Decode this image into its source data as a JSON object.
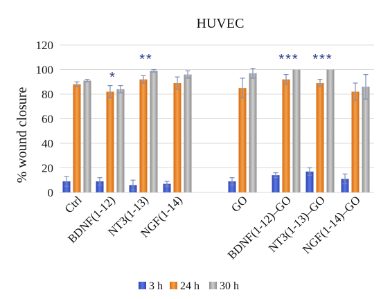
{
  "chart_data": {
    "type": "bar",
    "title": "HUVEC",
    "ylabel": "% wound closure",
    "ylim": [
      0,
      120
    ],
    "yticks": [
      0,
      20,
      40,
      60,
      80,
      100,
      120
    ],
    "grid": true,
    "legend_position": "bottom",
    "categories": [
      "Ctrl",
      "BDNF(1-12)",
      "NT3(1-13)",
      "NGF(1-14)",
      "GO",
      "BDNF(1-12)–GO",
      "NT3(1-13)–GO",
      "NGF(1-14)–GO"
    ],
    "series": [
      {
        "name": "3 h",
        "color": "#3a56c8",
        "values": [
          9,
          9,
          6,
          7,
          9,
          14,
          17,
          11
        ],
        "errors": [
          4,
          3,
          4,
          2,
          3,
          2,
          3,
          4
        ]
      },
      {
        "name": "24 h",
        "color": "#e8821e",
        "values": [
          88,
          82,
          92,
          89,
          85,
          92,
          89,
          82
        ],
        "errors": [
          2,
          5,
          3,
          5,
          8,
          4,
          3,
          7
        ]
      },
      {
        "name": "30 h",
        "color": "#a3a3a3",
        "values": [
          91,
          84,
          99,
          96,
          97,
          100,
          100,
          86
        ],
        "errors": [
          1,
          3,
          1,
          3,
          4,
          0,
          0,
          10
        ]
      }
    ],
    "annotations": [
      "",
      "*",
      "**",
      "",
      "",
      "***",
      "***",
      ""
    ]
  }
}
